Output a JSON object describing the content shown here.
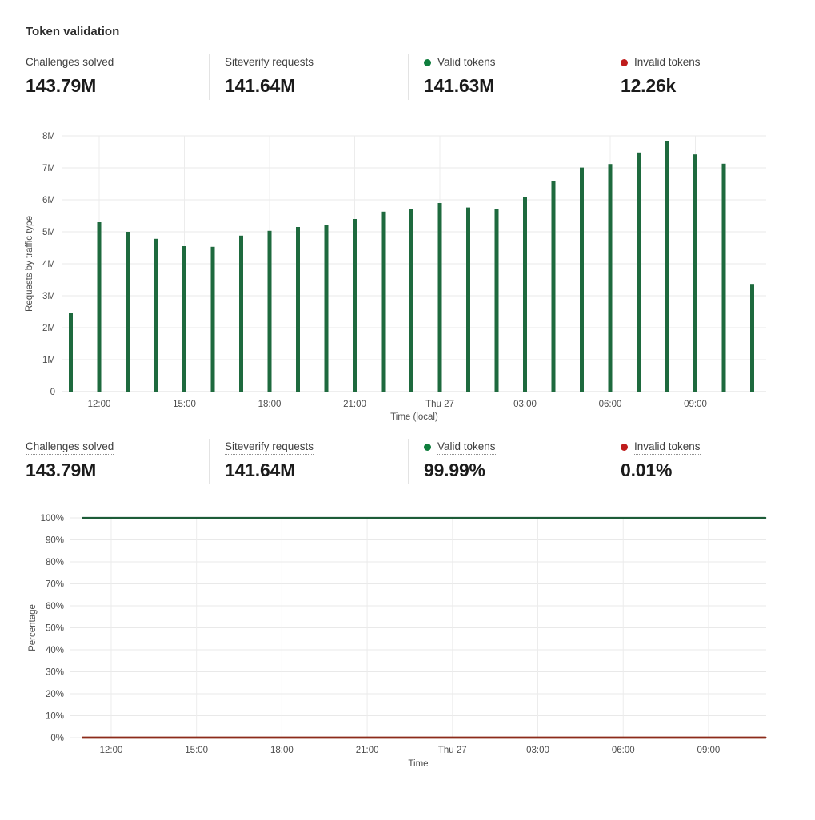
{
  "page": {
    "title": "Token validation"
  },
  "colors": {
    "bar_green": "#1e6a3e",
    "line_green": "#1d5c38",
    "line_red": "#8c2b1a",
    "dot_green": "#0f7e3d",
    "dot_red": "#bf1d1d"
  },
  "stats_top": [
    {
      "label": "Challenges solved",
      "value": "143.79M"
    },
    {
      "label": "Siteverify requests",
      "value": "141.64M"
    },
    {
      "label": "Valid tokens",
      "value": "141.63M",
      "dot": "green"
    },
    {
      "label": "Invalid tokens",
      "value": "12.26k",
      "dot": "red"
    }
  ],
  "stats_bottom": [
    {
      "label": "Challenges solved",
      "value": "143.79M"
    },
    {
      "label": "Siteverify requests",
      "value": "141.64M"
    },
    {
      "label": "Valid tokens",
      "value": "99.99%",
      "dot": "green"
    },
    {
      "label": "Invalid tokens",
      "value": "0.01%",
      "dot": "red"
    }
  ],
  "chart_data": [
    {
      "type": "bar",
      "title": "Requests by traffic type over time",
      "ylabel": "Requests by traffic type",
      "xlabel": "Time (local)",
      "ylim": [
        0,
        8000000
      ],
      "grid": true,
      "bar_color": "#1e6a3e",
      "categories": [
        "11:00",
        "12:00",
        "13:00",
        "14:00",
        "15:00",
        "16:00",
        "17:00",
        "18:00",
        "19:00",
        "20:00",
        "21:00",
        "22:00",
        "23:00",
        "Thu 27 00:00",
        "01:00",
        "02:00",
        "03:00",
        "04:00",
        "05:00",
        "06:00",
        "07:00",
        "08:00",
        "09:00",
        "10:00",
        "11:00"
      ],
      "values_millions": [
        2.45,
        5.3,
        5.0,
        4.78,
        4.55,
        4.53,
        4.88,
        5.03,
        5.15,
        5.2,
        5.4,
        5.63,
        5.71,
        5.9,
        5.76,
        5.7,
        6.08,
        6.58,
        7.01,
        7.12,
        7.48,
        7.83,
        7.42,
        7.13,
        3.37
      ],
      "ytick_values": [
        0,
        1,
        2,
        3,
        4,
        5,
        6,
        7,
        8
      ],
      "ytick_labels": [
        "0",
        "1M",
        "2M",
        "3M",
        "4M",
        "5M",
        "6M",
        "7M",
        "8M"
      ],
      "xticks": [
        {
          "i": 1,
          "label": "12:00"
        },
        {
          "i": 4,
          "label": "15:00"
        },
        {
          "i": 7,
          "label": "18:00"
        },
        {
          "i": 10,
          "label": "21:00"
        },
        {
          "i": 13,
          "label": "Thu 27"
        },
        {
          "i": 16,
          "label": "03:00"
        },
        {
          "i": 19,
          "label": "06:00"
        },
        {
          "i": 22,
          "label": "09:00"
        }
      ]
    },
    {
      "type": "line",
      "title": "Valid vs invalid token percentage over time",
      "ylabel": "Percentage",
      "xlabel": "Time",
      "ylim": [
        0,
        100
      ],
      "grid": true,
      "categories": [
        "11:00",
        "12:00",
        "13:00",
        "14:00",
        "15:00",
        "16:00",
        "17:00",
        "18:00",
        "19:00",
        "20:00",
        "21:00",
        "22:00",
        "23:00",
        "Thu 27 00:00",
        "01:00",
        "02:00",
        "03:00",
        "04:00",
        "05:00",
        "06:00",
        "07:00",
        "08:00",
        "09:00",
        "10:00",
        "11:00"
      ],
      "series": [
        {
          "name": "Valid tokens",
          "color": "#1d5c38",
          "values_percent": [
            99.99,
            99.99,
            99.99,
            99.99,
            99.99,
            99.99,
            99.99,
            99.99,
            99.99,
            99.99,
            99.99,
            99.99,
            99.99,
            99.99,
            99.99,
            99.99,
            99.99,
            99.99,
            99.99,
            99.99,
            99.99,
            99.99,
            99.99,
            99.99,
            99.99
          ]
        },
        {
          "name": "Invalid tokens",
          "color": "#8c2b1a",
          "values_percent": [
            0.01,
            0.01,
            0.01,
            0.01,
            0.01,
            0.01,
            0.01,
            0.01,
            0.01,
            0.01,
            0.01,
            0.01,
            0.01,
            0.01,
            0.01,
            0.01,
            0.01,
            0.01,
            0.01,
            0.01,
            0.01,
            0.01,
            0.01,
            0.01,
            0.01
          ]
        }
      ],
      "ytick_values": [
        0,
        10,
        20,
        30,
        40,
        50,
        60,
        70,
        80,
        90,
        100
      ],
      "ytick_labels": [
        "0%",
        "10%",
        "20%",
        "30%",
        "40%",
        "50%",
        "60%",
        "70%",
        "80%",
        "90%",
        "100%"
      ],
      "xticks": [
        {
          "i": 1,
          "label": "12:00"
        },
        {
          "i": 4,
          "label": "15:00"
        },
        {
          "i": 7,
          "label": "18:00"
        },
        {
          "i": 10,
          "label": "21:00"
        },
        {
          "i": 13,
          "label": "Thu 27"
        },
        {
          "i": 16,
          "label": "03:00"
        },
        {
          "i": 19,
          "label": "06:00"
        },
        {
          "i": 22,
          "label": "09:00"
        }
      ]
    }
  ]
}
